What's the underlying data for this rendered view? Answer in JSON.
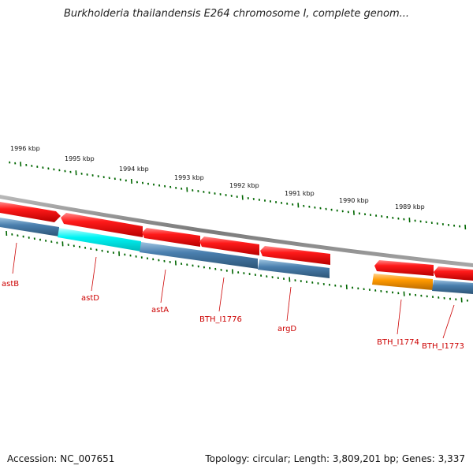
{
  "header": {
    "title": "Burkholderia thailandensis E264 chromosome I, complete genom..."
  },
  "footer": {
    "accession": "Accession: NC_007651",
    "summary": "Topology: circular; Length: 3,809,201 bp; Genes: 3,337"
  },
  "colors": {
    "forward_gene": "#ee0000",
    "reverse_gene": "#4a7fae",
    "highlight_cyan": "#00ffff",
    "highlight_orange": "#ff9900",
    "backbone": "#888888",
    "tick": "#006600",
    "label": "#cc0000"
  },
  "scale_labels": [
    "1996 kbp",
    "1995 kbp",
    "1994 kbp",
    "1993 kbp",
    "1992 kbp",
    "1991 kbp",
    "1990 kbp",
    "1989 kbp"
  ],
  "gene_labels": [
    "astB",
    "astD",
    "astA",
    "BTH_I1776",
    "argD",
    "BTH_I1774",
    "BTH_I1773"
  ],
  "features": {
    "forward_strand": [
      {
        "id": "fwd-1",
        "strand": "forward",
        "color": "#ee0000"
      },
      {
        "id": "fwd-2",
        "strand": "forward",
        "color": "#ee0000"
      },
      {
        "id": "fwd-3",
        "strand": "forward",
        "color": "#ee0000"
      },
      {
        "id": "fwd-4",
        "strand": "forward",
        "color": "#ee0000"
      },
      {
        "id": "fwd-5",
        "strand": "forward",
        "color": "#ee0000"
      },
      {
        "id": "fwd-6",
        "strand": "forward",
        "color": "#ee0000"
      },
      {
        "id": "fwd-7",
        "strand": "forward",
        "color": "#ee0000"
      }
    ],
    "reverse_strand": [
      {
        "id": "rev-1",
        "strand": "reverse",
        "color": "#4a7fae"
      },
      {
        "id": "rev-2",
        "strand": "reverse",
        "color": "#00ffff"
      },
      {
        "id": "rev-3",
        "strand": "reverse",
        "color": "#4a7fae"
      },
      {
        "id": "rev-4",
        "strand": "reverse",
        "color": "#4a7fae"
      },
      {
        "id": "rev-5",
        "strand": "reverse",
        "color": "#ff9900"
      },
      {
        "id": "rev-6",
        "strand": "reverse",
        "color": "#4a7fae"
      }
    ]
  }
}
